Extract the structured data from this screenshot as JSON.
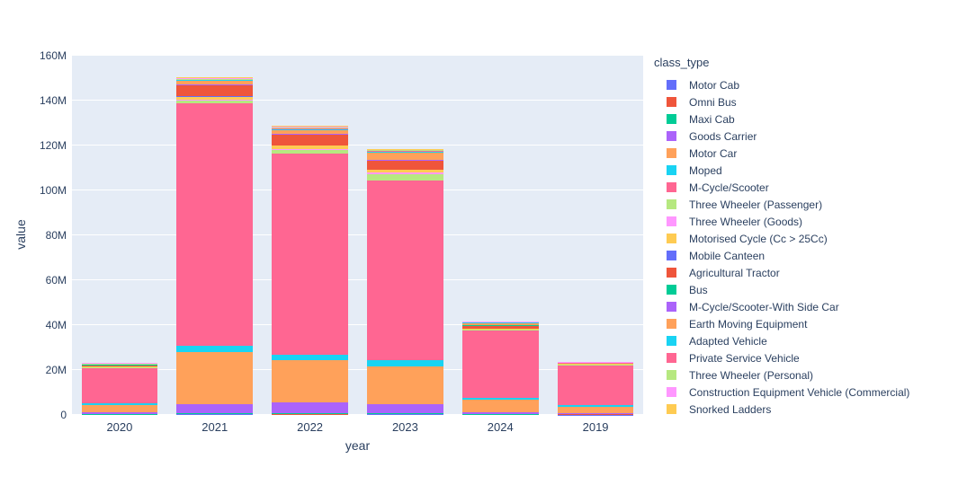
{
  "figure": {
    "legend": {
      "title": "class_type"
    },
    "yaxis": {
      "title": "value",
      "ticks": [
        "0",
        "20M",
        "40M",
        "60M",
        "80M",
        "100M",
        "120M",
        "140M",
        "160M"
      ]
    },
    "xaxis": {
      "title": "year",
      "ticks": [
        "2020",
        "2021",
        "2022",
        "2023",
        "2024",
        "2019"
      ]
    }
  },
  "colors": {
    "plot_background": "#e5ecf6",
    "gridline": "#ffffff",
    "text": "#2a3f5f"
  },
  "chart_data": {
    "type": "bar",
    "stacked": true,
    "title": "",
    "xlabel": "year",
    "ylabel": "value",
    "legend_title": "class_type",
    "legend_position": "right",
    "grid": true,
    "categories": [
      "2020",
      "2021",
      "2022",
      "2023",
      "2024",
      "2019"
    ],
    "y_unit": "M",
    "ylim_millions": [
      0,
      160
    ],
    "ytick_step_millions": 20,
    "series": [
      {
        "name": "Motor Cab",
        "color": "#636EFA",
        "values_millions": [
          0.3,
          0.6,
          0.5,
          0.6,
          0.3,
          0.2
        ]
      },
      {
        "name": "Omni Bus",
        "color": "#EF553B",
        "values_millions": [
          0.05,
          0.1,
          0.1,
          0.1,
          0.05,
          0.03
        ]
      },
      {
        "name": "Maxi Cab",
        "color": "#00CC96",
        "values_millions": [
          0.05,
          0.1,
          0.1,
          0.1,
          0.05,
          0.03
        ]
      },
      {
        "name": "Goods Carrier",
        "color": "#AB63FA",
        "values_millions": [
          0.8,
          4.2,
          4.8,
          4.0,
          1.0,
          0.4
        ]
      },
      {
        "name": "Motor Car",
        "color": "#FFA15A",
        "values_millions": [
          3.2,
          23.2,
          18.8,
          16.8,
          5.4,
          2.8
        ]
      },
      {
        "name": "Moped",
        "color": "#19D3F3",
        "values_millions": [
          0.7,
          2.8,
          2.6,
          2.8,
          1.0,
          0.8
        ]
      },
      {
        "name": "M-Cycle/Scooter",
        "color": "#FF6692",
        "values_millions": [
          16.0,
          108.0,
          89.5,
          80.0,
          30.0,
          17.8
        ]
      },
      {
        "name": "Three Wheeler (Passenger)",
        "color": "#B6E880",
        "values_millions": [
          0.3,
          1.2,
          1.8,
          3.0,
          0.4,
          0.6
        ]
      },
      {
        "name": "Three Wheeler (Goods)",
        "color": "#FF97FF",
        "values_millions": [
          0.1,
          0.3,
          0.3,
          0.6,
          0.1,
          0.05
        ]
      },
      {
        "name": "Motorised Cycle (Cc > 25Cc)",
        "color": "#FECB52",
        "values_millions": [
          0.2,
          1.3,
          1.5,
          1.2,
          0.2,
          0.1
        ]
      },
      {
        "name": "Mobile Canteen",
        "color": "#636EFA",
        "values_millions": [
          0.01,
          0.02,
          0.02,
          0.02,
          0.01,
          0.01
        ]
      },
      {
        "name": "Agricultural Tractor",
        "color": "#EF553B",
        "values_millions": [
          0.8,
          5.2,
          5.0,
          4.0,
          1.5,
          0.3
        ]
      },
      {
        "name": "Bus",
        "color": "#00CC96",
        "values_millions": [
          0.05,
          0.3,
          0.3,
          0.3,
          0.1,
          0.05
        ]
      },
      {
        "name": "M-Cycle/Scooter-With Side Car",
        "color": "#AB63FA",
        "values_millions": [
          0.01,
          0.05,
          0.05,
          0.05,
          0.01,
          0.01
        ]
      },
      {
        "name": "Earth Moving Equipment",
        "color": "#FFA15A",
        "values_millions": [
          0.2,
          1.6,
          1.8,
          3.4,
          1.2,
          0.1
        ]
      },
      {
        "name": "Adapted Vehicle",
        "color": "#19D3F3",
        "values_millions": [
          0.05,
          0.2,
          0.2,
          0.3,
          0.05,
          0.02
        ]
      },
      {
        "name": "Private Service Vehicle",
        "color": "#FF6692",
        "values_millions": [
          0.1,
          0.4,
          0.4,
          0.4,
          0.1,
          0.05
        ]
      },
      {
        "name": "Three Wheeler (Personal)",
        "color": "#B6E880",
        "values_millions": [
          0.05,
          0.2,
          0.2,
          0.2,
          0.15,
          0.02
        ]
      },
      {
        "name": "Construction Equipment Vehicle (Commercial)",
        "color": "#FF97FF",
        "values_millions": [
          0.1,
          0.6,
          0.6,
          0.5,
          0.1,
          0.05
        ]
      },
      {
        "name": "Snorked Ladders",
        "color": "#FECB52",
        "values_millions": [
          0.02,
          0.1,
          0.1,
          0.1,
          0.02,
          0.01
        ]
      }
    ]
  }
}
